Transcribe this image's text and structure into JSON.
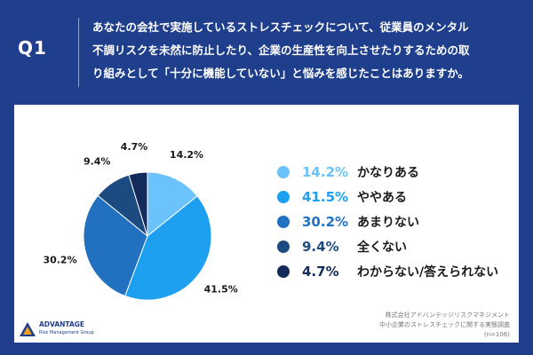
{
  "header": {
    "q_label": "Q1",
    "question_lines": [
      "あなたの会社で実施しているストレスチェックについて、従業員のメンタル",
      "不調リスクを未然に防止したり、企業の生産性を向上させたりするための取",
      "り組みとして「十分に機能していない」と悩みを感じたことはありますか。"
    ]
  },
  "chart_data": {
    "type": "pie",
    "title": "",
    "categories": [
      "かなりある",
      "ややある",
      "あまりない",
      "全くない",
      "わからない/答えられない"
    ],
    "values": [
      14.2,
      41.5,
      30.2,
      9.4,
      4.7
    ],
    "labels": [
      "14.2%",
      "41.5%",
      "30.2%",
      "9.4%",
      "4.7%"
    ],
    "colors": [
      "#6cc3fb",
      "#1ea0f0",
      "#2171c0",
      "#1c4b82",
      "#132b5a"
    ],
    "start": "top",
    "direction": "clockwise",
    "legend_position": "right"
  },
  "footer": {
    "logo_name": "ADVANTAGE",
    "logo_sub": "Risk Management Group",
    "source_lines": [
      "株式会社アドバンテッジリスクマネジメント",
      "中小企業のストレスチェックに関する実態調査",
      "(n=106)"
    ]
  }
}
